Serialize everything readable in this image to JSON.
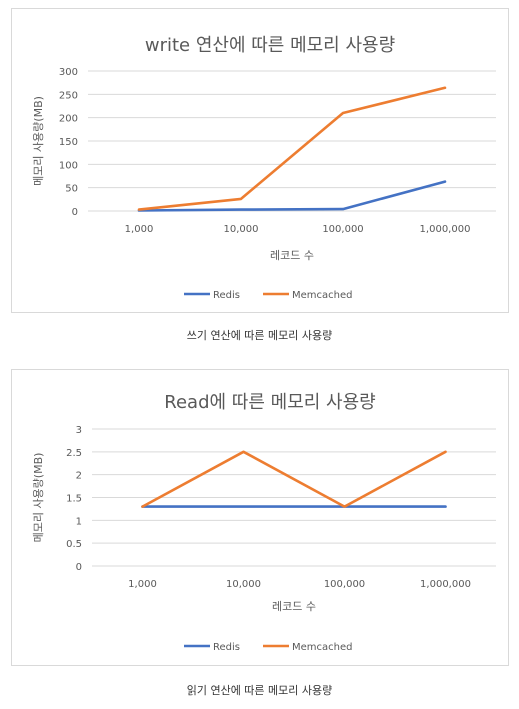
{
  "charts": [
    {
      "caption": "쓰기 연산에 따른 메모리 사용량",
      "chart_data": {
        "type": "line",
        "title": "write 연산에 따른 메모리 사용량",
        "xlabel": "레코드 수",
        "ylabel": "메모리 사용량(MB)",
        "categories": [
          "1,000",
          "10,000",
          "100,000",
          "1,000,000"
        ],
        "yticks": [
          "0",
          "50",
          "100",
          "150",
          "200",
          "250",
          "300"
        ],
        "ylim": [
          0,
          300
        ],
        "grid": true,
        "legend": "bottom",
        "series": [
          {
            "name": "Redis",
            "color": "#4472c4",
            "values": [
              1,
              3,
              4,
              63
            ]
          },
          {
            "name": "Memcached",
            "color": "#ed7d31",
            "values": [
              3,
              26,
              210,
              264
            ]
          }
        ]
      }
    },
    {
      "caption": "읽기 연산에 따른 메모리 사용량",
      "chart_data": {
        "type": "line",
        "title": "Read에 따른 메모리 사용량",
        "xlabel": "레코드 수",
        "ylabel": "메모리 사용량(MB)",
        "categories": [
          "1,000",
          "10,000",
          "100,000",
          "1,000,000"
        ],
        "yticks": [
          "0",
          "0.5",
          "1",
          "1.5",
          "2",
          "2.5",
          "3"
        ],
        "ylim": [
          0,
          3
        ],
        "grid": true,
        "legend": "bottom",
        "series": [
          {
            "name": "Redis",
            "color": "#4472c4",
            "values": [
              1.3,
              1.3,
              1.3,
              1.3
            ]
          },
          {
            "name": "Memcached",
            "color": "#ed7d31",
            "values": [
              1.3,
              2.5,
              1.3,
              2.5
            ]
          }
        ]
      }
    }
  ]
}
